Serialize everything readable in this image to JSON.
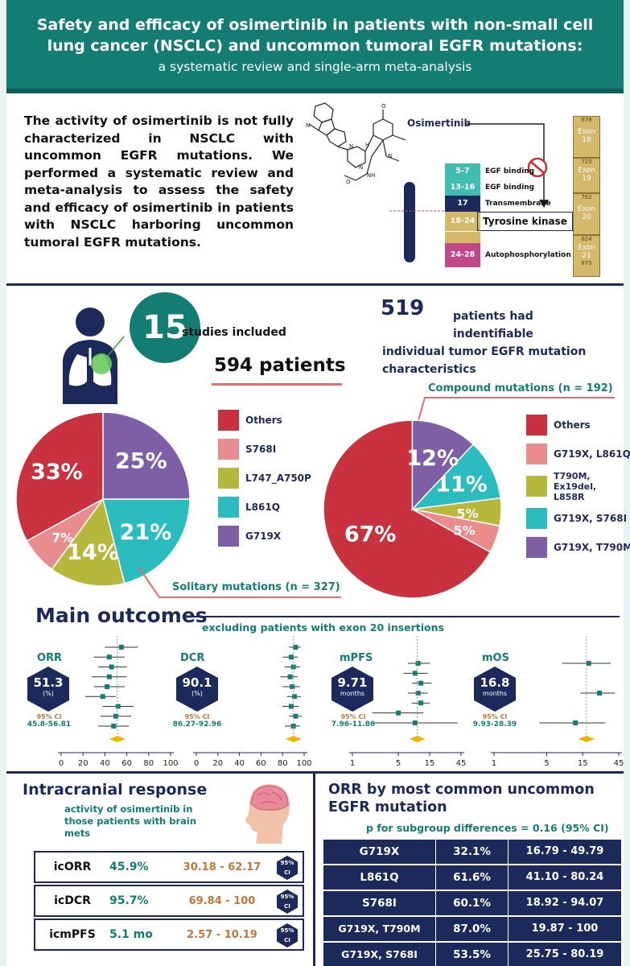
{
  "header": {
    "title_line1": "Safety and efficacy of osimertinib in patients with non-small cell",
    "title_line2": "lung cancer (NSCLC) and uncommon tumoral EGFR mutations:",
    "subtitle": "a systematic review and single-arm meta-analysis"
  },
  "intro": "The activity of osimertinib is not fully characterized in NSCLC with uncommon EGFR mutations. We performed a systematic review and meta-analysis to assess the safety and efficacy of osimertinib in patients with NSCLC harboring uncommon tumoral EGFR mutations.",
  "molecule": {
    "label": "Osimertinib",
    "domains": [
      {
        "range": "5-7",
        "label": "EGF binding",
        "color": "#3fbdb0"
      },
      {
        "range": "13-16",
        "label": "EGF binding",
        "color": "#3fbdb0"
      },
      {
        "range": "17",
        "label": "Transmembrane",
        "color": "#1b2a5a"
      },
      {
        "range": "18-24",
        "label": "Tyrosine kinase",
        "color": "#d4b96a"
      },
      {
        "range": "24-28",
        "label": "Autophosphorylation",
        "color": "#c0478a"
      }
    ],
    "exons": [
      {
        "top": "678",
        "label": "Exon 18"
      },
      {
        "top": "729",
        "label": "Exon 19"
      },
      {
        "top": "762",
        "label": "Exon 20"
      },
      {
        "top": "824",
        "label": "Exon 21",
        "bottom": "875"
      }
    ]
  },
  "studies": {
    "count": "15",
    "label": "studies included",
    "patients": "594 patients"
  },
  "identified": {
    "count": "519",
    "text_a": "patients had indentifiable",
    "text_b": "individual tumor EGFR mutation",
    "text_c": "characteristics"
  },
  "solitary": {
    "title": "Solitary mutations (n = 327)",
    "legend": [
      {
        "label": "Others",
        "color": "#c8313d"
      },
      {
        "label": "S768I",
        "color": "#e88c8e"
      },
      {
        "label": "L747_A750P",
        "color": "#b5b83a"
      },
      {
        "label": "L861Q",
        "color": "#2bbcc0"
      },
      {
        "label": "G719X",
        "color": "#7e5ea4"
      }
    ]
  },
  "compound": {
    "title": "Compound mutations (n = 192)",
    "legend": [
      {
        "label": "Others",
        "color": "#c8313d"
      },
      {
        "label": "G719X, L861Q",
        "color": "#e88c8e"
      },
      {
        "label": "T790M, Ex19del, L858R",
        "color": "#b5b83a"
      },
      {
        "label": "G719X, S768I",
        "color": "#2bbcc0"
      },
      {
        "label": "G719X, T790M",
        "color": "#7e5ea4"
      }
    ]
  },
  "chart_data": [
    {
      "type": "pie",
      "title": "Solitary mutations (n = 327)",
      "categories": [
        "Others",
        "S768I",
        "L747_A750P",
        "L861Q",
        "G719X"
      ],
      "values": [
        33,
        7,
        14,
        21,
        25
      ],
      "labels": [
        "33%",
        "7%",
        "14%",
        "21%",
        "25%"
      ]
    },
    {
      "type": "pie",
      "title": "Compound mutations (n = 192)",
      "categories": [
        "Others",
        "G719X, L861Q",
        "T790M, Ex19del, L858R",
        "G719X, S768I",
        "G719X, T790M"
      ],
      "values": [
        67,
        5,
        5,
        11,
        12
      ],
      "labels": [
        "67%",
        "5%",
        "5%",
        "11%",
        "12%"
      ]
    }
  ],
  "outcomes": {
    "title": "Main outcomes",
    "subtitle": "excluding patients with exon 20 insertions",
    "panels": [
      {
        "name": "ORR",
        "value": "51.3",
        "unit": "(%)",
        "ci_label": "95% CI",
        "ci": "45.8-56.81",
        "ticks": [
          "0",
          "20",
          "40",
          "60",
          "80",
          "100"
        ]
      },
      {
        "name": "DCR",
        "value": "90.1",
        "unit": "(%)",
        "ci_label": "95% CI",
        "ci": "86.27-92.96",
        "ticks": [
          "0",
          "20",
          "40",
          "60",
          "80",
          "100"
        ]
      },
      {
        "name": "mPFS",
        "value": "9.71",
        "unit": "months",
        "ci_label": "95% CI",
        "ci": "7.96-11.86",
        "ticks": [
          "1",
          "5",
          "15",
          "45"
        ]
      },
      {
        "name": "mOS",
        "value": "16.8",
        "unit": "months",
        "ci_label": "95% CI",
        "ci": "9.93-28.39",
        "ticks": [
          "1",
          "5",
          "15",
          "45"
        ]
      }
    ]
  },
  "intracranial": {
    "title": "Intracranial response",
    "subtitle": "activity of osimertinib in those patients with brain mets",
    "ci_hex_a": "95%",
    "ci_hex_b": "CI",
    "rows": [
      {
        "name": "icORR",
        "value": "45.9%",
        "ci": "30.18 - 62.17"
      },
      {
        "name": "icDCR",
        "value": "95.7%",
        "ci": "69.84 - 100"
      },
      {
        "name": "icmPFS",
        "value": "5.1 mo",
        "ci": "2.57 - 10.19"
      }
    ]
  },
  "orr_mutation": {
    "title": "ORR by most common uncommon EGFR mutation",
    "subtitle": "p for subgroup differences = 0.16 (95% CI)",
    "rows": [
      {
        "mutation": "G719X",
        "value": "32.1%",
        "ci": "16.79 - 49.79"
      },
      {
        "mutation": "L861Q",
        "value": "61.6%",
        "ci": "41.10 - 80.24"
      },
      {
        "mutation": "S768I",
        "value": "60.1%",
        "ci": "18.92 - 94.07"
      },
      {
        "mutation": "G719X, T790M",
        "value": "87.0%",
        "ci": "19.87 - 100"
      },
      {
        "mutation": "G719X, S768I",
        "value": "53.5%",
        "ci": "25.75 - 80.19"
      }
    ]
  }
}
